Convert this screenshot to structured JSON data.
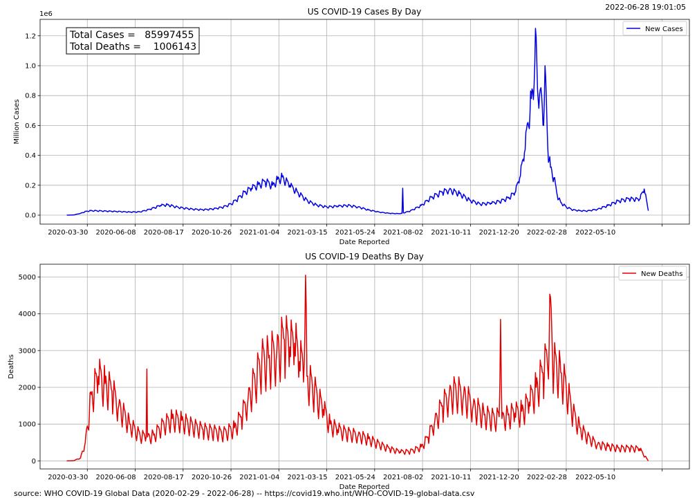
{
  "timestamp": "2022-06-28 19:01:05",
  "source": "source: WHO COVID-19 Global Data (2020-02-29 - 2022-06-28) -- https://covid19.who.int/WHO-COVID-19-global-data.csv",
  "colors": {
    "cases": "#0000e0",
    "deaths": "#e00000",
    "grid": "#b0b0b0"
  },
  "chart_data": [
    {
      "type": "line",
      "title": "US COVID-19 Cases By Day",
      "xlabel": "Date Reported",
      "ylabel": "Million Cases",
      "offset_text": "1e6",
      "xlim": [
        "2020-01-21",
        "2022-08-27"
      ],
      "ylim": [
        -60000,
        1310000
      ],
      "x_ticks": [
        "2020-03-30",
        "2020-06-08",
        "2020-08-17",
        "2020-10-26",
        "2021-01-04",
        "2021-03-15",
        "2021-05-24",
        "2021-08-02",
        "2021-10-11",
        "2021-12-20",
        "2022-02-28",
        "2022-05-10"
      ],
      "y_ticks": [
        0,
        200000,
        400000,
        600000,
        800000,
        1000000,
        1200000
      ],
      "y_tick_labels": [
        "0.0",
        "0.2",
        "0.4",
        "0.6",
        "0.8",
        "1.0",
        "1.2"
      ],
      "grid": true,
      "legend_position": "top-right",
      "annotation": [
        "Total Cases =   85997455",
        "Total Deaths =    1006143"
      ],
      "series": [
        {
          "name": "New Cases",
          "color": "#0000e0",
          "oscillation": 0.22,
          "points": [
            [
              "2020-02-29",
              0
            ],
            [
              "2020-03-10",
              1000
            ],
            [
              "2020-03-20",
              12000
            ],
            [
              "2020-03-28",
              25000
            ],
            [
              "2020-04-04",
              30000
            ],
            [
              "2020-04-20",
              28000
            ],
            [
              "2020-05-10",
              25000
            ],
            [
              "2020-05-31",
              21000
            ],
            [
              "2020-06-15",
              22000
            ],
            [
              "2020-06-30",
              40000
            ],
            [
              "2020-07-15",
              65000
            ],
            [
              "2020-07-25",
              70000
            ],
            [
              "2020-08-10",
              52000
            ],
            [
              "2020-08-31",
              40000
            ],
            [
              "2020-09-15",
              36000
            ],
            [
              "2020-10-01",
              42000
            ],
            [
              "2020-10-15",
              55000
            ],
            [
              "2020-10-26",
              75000
            ],
            [
              "2020-11-05",
              110000
            ],
            [
              "2020-11-15",
              155000
            ],
            [
              "2020-11-25",
              180000
            ],
            [
              "2020-12-05",
              205000
            ],
            [
              "2020-12-15",
              225000
            ],
            [
              "2020-12-26",
              200000
            ],
            [
              "2021-01-02",
              240000
            ],
            [
              "2021-01-09",
              255000
            ],
            [
              "2021-01-20",
              200000
            ],
            [
              "2021-01-31",
              155000
            ],
            [
              "2021-02-15",
              95000
            ],
            [
              "2021-02-28",
              68000
            ],
            [
              "2021-03-15",
              55000
            ],
            [
              "2021-03-31",
              60000
            ],
            [
              "2021-04-15",
              65000
            ],
            [
              "2021-04-30",
              55000
            ],
            [
              "2021-05-15",
              35000
            ],
            [
              "2021-05-31",
              20000
            ],
            [
              "2021-06-15",
              12000
            ],
            [
              "2021-06-30",
              10000
            ],
            [
              "2021-07-03",
              12000
            ],
            [
              "2021-07-04",
              180000
            ],
            [
              "2021-07-05",
              15000
            ],
            [
              "2021-07-15",
              28000
            ],
            [
              "2021-07-31",
              65000
            ],
            [
              "2021-08-15",
              120000
            ],
            [
              "2021-08-31",
              155000
            ],
            [
              "2021-09-10",
              170000
            ],
            [
              "2021-09-25",
              145000
            ],
            [
              "2021-10-10",
              100000
            ],
            [
              "2021-10-25",
              75000
            ],
            [
              "2021-11-10",
              80000
            ],
            [
              "2021-11-25",
              95000
            ],
            [
              "2021-12-05",
              115000
            ],
            [
              "2021-12-15",
              150000
            ],
            [
              "2021-12-22",
              250000
            ],
            [
              "2021-12-29",
              420000
            ],
            [
              "2022-01-03",
              620000
            ],
            [
              "2022-01-08",
              780000
            ],
            [
              "2022-01-12",
              870000
            ],
            [
              "2022-01-14",
              1250000
            ],
            [
              "2022-01-17",
              850000
            ],
            [
              "2022-01-21",
              840000
            ],
            [
              "2022-01-24",
              720000
            ],
            [
              "2022-01-26",
              600000
            ],
            [
              "2022-01-28",
              1000000
            ],
            [
              "2022-02-01",
              450000
            ],
            [
              "2022-02-05",
              320000
            ],
            [
              "2022-02-10",
              250000
            ],
            [
              "2022-02-15",
              130000
            ],
            [
              "2022-02-20",
              85000
            ],
            [
              "2022-02-28",
              55000
            ],
            [
              "2022-03-10",
              35000
            ],
            [
              "2022-03-20",
              30000
            ],
            [
              "2022-03-31",
              28000
            ],
            [
              "2022-04-15",
              40000
            ],
            [
              "2022-04-30",
              65000
            ],
            [
              "2022-05-15",
              95000
            ],
            [
              "2022-05-31",
              110000
            ],
            [
              "2022-06-15",
              105000
            ],
            [
              "2022-06-22",
              175000
            ],
            [
              "2022-06-28",
              30000
            ]
          ]
        }
      ]
    },
    {
      "type": "line",
      "title": "US COVID-19 Deaths By Day",
      "xlabel": "Date Reported",
      "ylabel": "Deaths",
      "xlim": [
        "2020-01-21",
        "2022-08-27"
      ],
      "ylim": [
        -220,
        5350
      ],
      "x_ticks": [
        "2020-03-30",
        "2020-06-08",
        "2020-08-17",
        "2020-10-26",
        "2021-01-04",
        "2021-03-15",
        "2021-05-24",
        "2021-08-02",
        "2021-10-11",
        "2021-12-20",
        "2022-02-28",
        "2022-05-10"
      ],
      "y_ticks": [
        0,
        1000,
        2000,
        3000,
        4000,
        5000
      ],
      "y_tick_labels": [
        "0",
        "1000",
        "2000",
        "3000",
        "4000",
        "5000"
      ],
      "grid": true,
      "legend_position": "top-right",
      "series": [
        {
          "name": "New Deaths",
          "color": "#e00000",
          "oscillation": 0.45,
          "points": [
            [
              "2020-02-29",
              0
            ],
            [
              "2020-03-10",
              5
            ],
            [
              "2020-03-20",
              80
            ],
            [
              "2020-03-27",
              500
            ],
            [
              "2020-04-05",
              1800
            ],
            [
              "2020-04-15",
              2300
            ],
            [
              "2020-04-25",
              2100
            ],
            [
              "2020-05-05",
              1900
            ],
            [
              "2020-05-15",
              1500
            ],
            [
              "2020-05-31",
              1000
            ],
            [
              "2020-06-15",
              700
            ],
            [
              "2020-06-24",
              650
            ],
            [
              "2020-06-25",
              2500
            ],
            [
              "2020-06-26",
              650
            ],
            [
              "2020-07-05",
              700
            ],
            [
              "2020-07-20",
              1000
            ],
            [
              "2020-08-01",
              1150
            ],
            [
              "2020-08-15",
              1100
            ],
            [
              "2020-08-31",
              950
            ],
            [
              "2020-09-15",
              850
            ],
            [
              "2020-10-01",
              800
            ],
            [
              "2020-10-15",
              750
            ],
            [
              "2020-10-31",
              900
            ],
            [
              "2020-11-10",
              1200
            ],
            [
              "2020-11-20",
              1700
            ],
            [
              "2020-11-30",
              2200
            ],
            [
              "2020-12-10",
              2700
            ],
            [
              "2020-12-20",
              2800
            ],
            [
              "2021-01-01",
              3000
            ],
            [
              "2021-01-12",
              3300
            ],
            [
              "2021-01-20",
              3100
            ],
            [
              "2021-01-27",
              3200
            ],
            [
              "2021-02-03",
              2700
            ],
            [
              "2021-02-10",
              2600
            ],
            [
              "2021-02-12",
              5050
            ],
            [
              "2021-02-14",
              2300
            ],
            [
              "2021-02-25",
              1900
            ],
            [
              "2021-03-10",
              1400
            ],
            [
              "2021-03-20",
              1000
            ],
            [
              "2021-03-31",
              850
            ],
            [
              "2021-04-15",
              750
            ],
            [
              "2021-04-30",
              700
            ],
            [
              "2021-05-15",
              600
            ],
            [
              "2021-05-31",
              450
            ],
            [
              "2021-06-15",
              330
            ],
            [
              "2021-06-30",
              250
            ],
            [
              "2021-07-15",
              260
            ],
            [
              "2021-07-31",
              380
            ],
            [
              "2021-08-10",
              650
            ],
            [
              "2021-08-20",
              1100
            ],
            [
              "2021-08-31",
              1500
            ],
            [
              "2021-09-10",
              1800
            ],
            [
              "2021-09-20",
              1900
            ],
            [
              "2021-10-01",
              1800
            ],
            [
              "2021-10-15",
              1500
            ],
            [
              "2021-10-31",
              1250
            ],
            [
              "2021-11-15",
              1150
            ],
            [
              "2021-11-22",
              1200
            ],
            [
              "2021-11-24",
              3850
            ],
            [
              "2021-11-26",
              1150
            ],
            [
              "2021-12-05",
              1250
            ],
            [
              "2021-12-15",
              1300
            ],
            [
              "2021-12-25",
              1350
            ],
            [
              "2022-01-05",
              1600
            ],
            [
              "2022-01-15",
              2000
            ],
            [
              "2022-01-25",
              2400
            ],
            [
              "2022-01-31",
              2800
            ],
            [
              "2022-02-06",
              4150
            ],
            [
              "2022-02-08",
              2700
            ],
            [
              "2022-02-20",
              2400
            ],
            [
              "2022-02-28",
              2000
            ],
            [
              "2022-03-10",
              1300
            ],
            [
              "2022-03-20",
              900
            ],
            [
              "2022-03-31",
              650
            ],
            [
              "2022-04-15",
              450
            ],
            [
              "2022-04-30",
              400
            ],
            [
              "2022-05-15",
              350
            ],
            [
              "2022-05-31",
              350
            ],
            [
              "2022-06-15",
              330
            ],
            [
              "2022-06-28",
              0
            ]
          ]
        }
      ]
    }
  ]
}
